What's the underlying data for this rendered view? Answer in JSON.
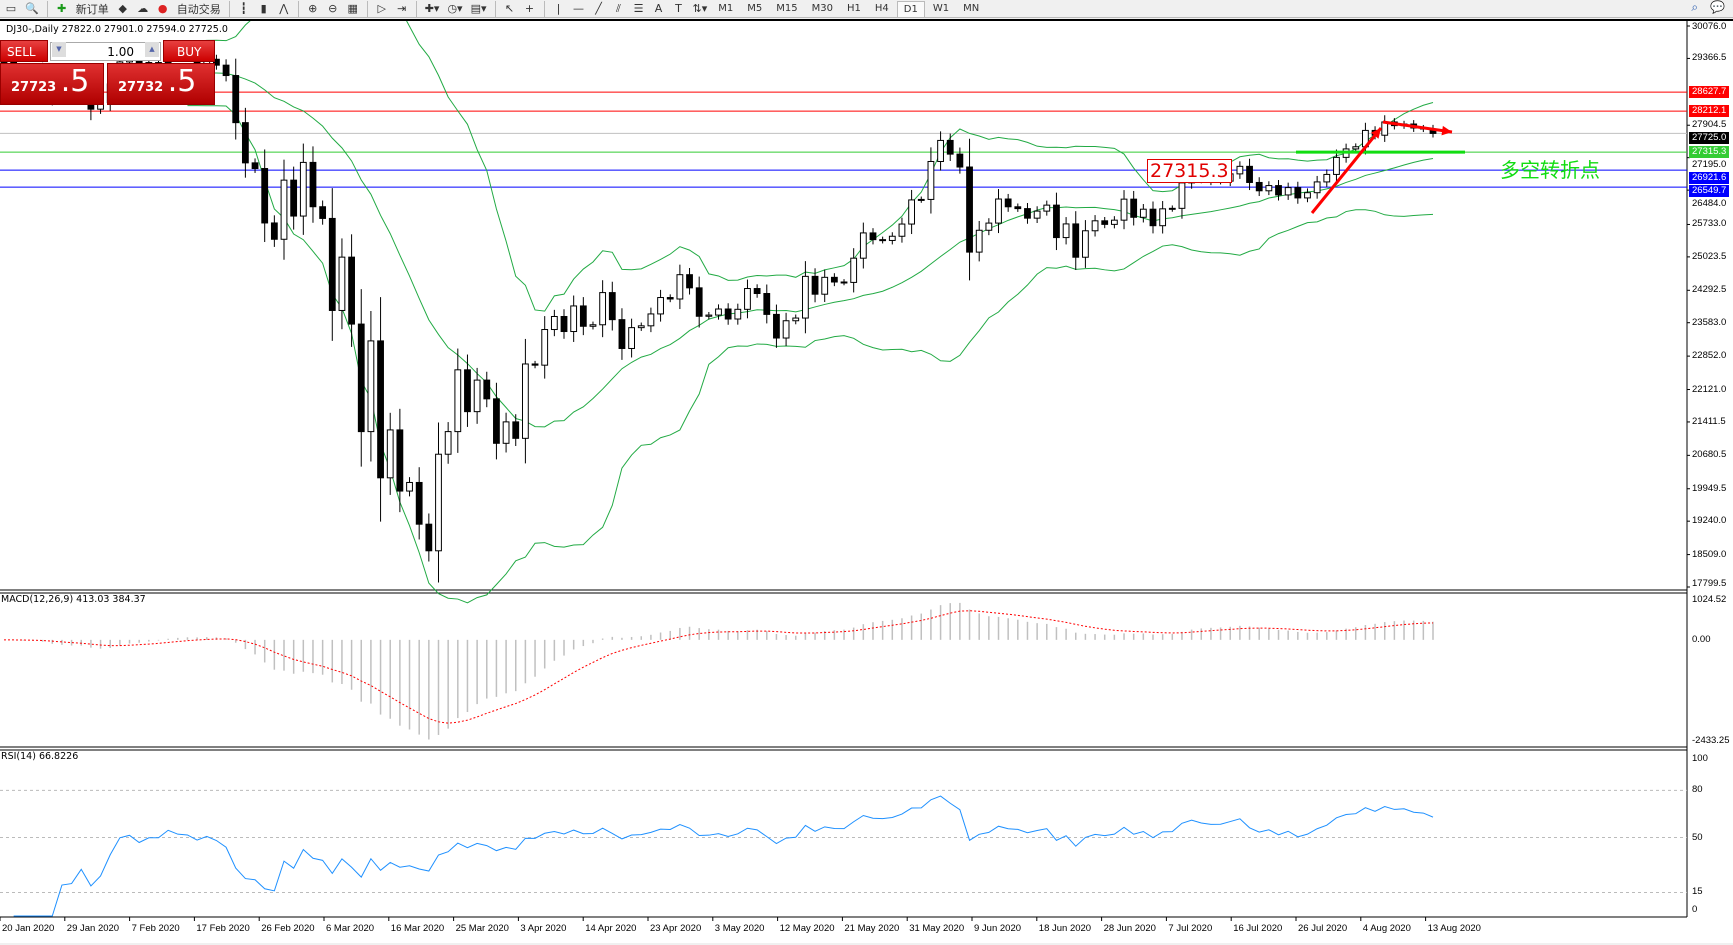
{
  "toolbar": {
    "new_order": "新订单",
    "auto_trading": "自动交易",
    "icons": [
      "new-chart-icon",
      "zoom-chart-icon",
      "new-order-icon",
      "market-watch-icon",
      "signals-icon",
      "auto-trading-icon",
      "bar-chart-icon",
      "candlestick-icon",
      "line-chart-icon",
      "zoom-in-icon",
      "zoom-out-icon",
      "tile-windows-icon",
      "auto-scroll-icon",
      "chart-shift-icon",
      "indicators-icon",
      "periods-icon",
      "templates-icon",
      "cursor-icon",
      "crosshair-icon",
      "vertical-line-icon",
      "horizontal-line-icon",
      "trendline-icon",
      "equidistant-channel-icon",
      "fibonacci-icon",
      "text-icon",
      "text-label-icon",
      "arrows-icon"
    ],
    "timeframes": [
      "M1",
      "M5",
      "M15",
      "M30",
      "H1",
      "H4",
      "D1",
      "W1",
      "MN"
    ],
    "active_timeframe": "D1"
  },
  "chart": {
    "title": "DJ30-,Daily  27822.0 27901.0 27594.0 27725.0",
    "trade_panel": {
      "sell": "SELL",
      "buy": "BUY",
      "lot": "1.00",
      "bid_main": "27723",
      "bid_big": ".5",
      "ask_main": "27732",
      "ask_big": ".5"
    },
    "annotation_box": "27315.3",
    "annotation_text": "多空转折点",
    "price_axis": [
      "30076.0",
      "29366.5",
      "27904.5",
      "27195.0",
      "26484.0",
      "25733.0",
      "25023.5",
      "24292.5",
      "23583.0",
      "22852.0",
      "22121.0",
      "21411.5",
      "20680.5",
      "19949.5",
      "19240.0",
      "18509.0",
      "17799.5"
    ],
    "levels": [
      {
        "value": "28627.7",
        "color": "#ff0000"
      },
      {
        "value": "28212.1",
        "color": "#ff0000"
      },
      {
        "value": "27725.0",
        "color": "#000000",
        "line": "#c0c0c0"
      },
      {
        "value": "27315.3",
        "color": "#33cc33"
      },
      {
        "value": "26921.6",
        "color": "#0000ff"
      },
      {
        "value": "26549.7",
        "color": "#0000ff"
      }
    ],
    "macd_label": "MACD(12,26,9) 413.03 384.37",
    "macd_axis": [
      "1024.52",
      "0.00",
      "-2433.25"
    ],
    "rsi_label": "RSI(14) 66.8226",
    "rsi_axis": [
      "100",
      "80",
      "50",
      "15",
      "0"
    ],
    "dates": [
      "20 Jan 2020",
      "29 Jan 2020",
      "7 Feb 2020",
      "17 Feb 2020",
      "26 Feb 2020",
      "6 Mar 2020",
      "16 Mar 2020",
      "25 Mar 2020",
      "3 Apr 2020",
      "14 Apr 2020",
      "23 Apr 2020",
      "3 May 2020",
      "12 May 2020",
      "21 May 2020",
      "31 May 2020",
      "9 Jun 2020",
      "18 Jun 2020",
      "28 Jun 2020",
      "7 Jul 2020",
      "16 Jul 2020",
      "26 Jul 2020",
      "4 Aug 2020",
      "13 Aug 2020"
    ],
    "colors": {
      "bull": "#ffffff",
      "bear": "#000000",
      "bands": "#22aa44",
      "macd_hist": "#c0c0c0",
      "macd_signal": "#ff0000",
      "rsi": "#1e90ff",
      "arrow": "#ff0000",
      "support": "#11dd11"
    }
  },
  "chart_data": {
    "type": "candlestick",
    "symbol": "DJ30-",
    "timeframe": "Daily",
    "ylim": [
      17799.5,
      30076.0
    ],
    "close": [
      29300,
      29196,
      29186,
      29160,
      28990,
      28535,
      28723,
      28734,
      28859,
      28256,
      28400,
      28807,
      29290,
      29379,
      29103,
      29276,
      29276,
      29551,
      29423,
      29398,
      29232,
      29348,
      29219,
      28992,
      27961,
      27081,
      26957,
      25766,
      25409,
      26703,
      25917,
      27091,
      26121,
      25865,
      23851,
      25018,
      23553,
      21200,
      23185,
      20189,
      21237,
      19899,
      20087,
      19174,
      18592,
      20705,
      21200,
      22552,
      21637,
      22327,
      21917,
      20944,
      21413,
      21053,
      22680,
      22654,
      23434,
      23719,
      23390,
      23950,
      23505,
      23538,
      24242,
      23650,
      23019,
      23475,
      23515,
      23775,
      24134,
      24102,
      24634,
      24346,
      23724,
      23750,
      23883,
      23664,
      23876,
      24331,
      24222,
      23765,
      23248,
      23626,
      23685,
      24597,
      24207,
      24576,
      24474,
      24465,
      24995,
      25548,
      25401,
      25383,
      25475,
      25742,
      26270,
      26281,
      27111,
      27572,
      27272,
      26990,
      25128,
      25606,
      25763,
      26290,
      26120,
      26080,
      25871,
      26025,
      26156,
      25446,
      25745,
      25016,
      25595,
      25813,
      25735,
      25827,
      26287,
      25890,
      26067,
      25706,
      26075,
      26086,
      26643,
      26870,
      26735,
      26672,
      26681,
      26840,
      27005,
      26652,
      26470,
      26584,
      26379,
      26540,
      26314,
      26428,
      26664,
      26828,
      27201,
      27386,
      27433,
      27791,
      27686,
      27976,
      27896,
      27931,
      27844,
      27822,
      27725
    ]
  }
}
